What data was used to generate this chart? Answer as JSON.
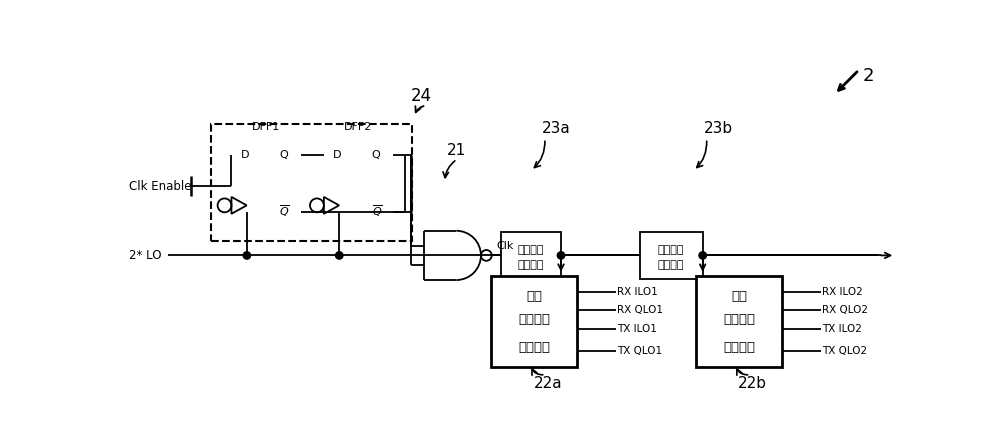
{
  "bg_color": "#ffffff",
  "line_color": "#000000",
  "fig_width": 10.0,
  "fig_height": 4.28,
  "dpi": 100,
  "label_2": "2",
  "label_24": "24",
  "label_21": "21",
  "label_clk_enable": "Clk Enable",
  "label_2lo": "2* LO",
  "label_clk": "Clk",
  "label_dff1": "DFF1",
  "label_dff2": "DFF2",
  "label_23a": "23a",
  "label_23b": "23b",
  "label_22a": "22a",
  "label_22b": "22b",
  "label_box1_line1": "第一片上",
  "label_box1_line2": "路由通路",
  "label_box2_line1": "第二片上",
  "label_box2_line2": "路由通路",
  "label_div1_line1": "第一",
  "label_div1_line2": "自复位正",
  "label_div1_line3": "交分频器",
  "label_div2_line1": "第二",
  "label_div2_line2": "自复位正",
  "label_div2_line3": "交分频器",
  "outputs_1": [
    "RX ILO1",
    "RX QLO1",
    "TX ILO1",
    "TX QLO1"
  ],
  "outputs_2": [
    "RX ILO2",
    "RX QLO2",
    "TX ILO2",
    "TX QLO2"
  ]
}
